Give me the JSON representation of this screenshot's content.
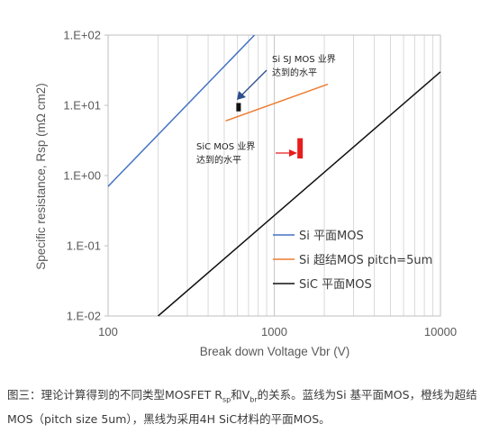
{
  "chart_data": {
    "type": "line",
    "xlabel": "Break down Voltage Vbr (V)",
    "ylabel": "Specific resistance, Rsp (mΩ cm2)",
    "x_scale": "log",
    "y_scale": "log",
    "xlim": [
      100,
      10000
    ],
    "ylim": [
      0.01,
      100
    ],
    "x_ticks": [
      "100",
      "1000",
      "10000"
    ],
    "y_ticks": [
      "1.E-02",
      "1.E-01",
      "1.E+00",
      "1.E+01",
      "1.E+02"
    ],
    "grid": "vertical",
    "legend_position": "right",
    "series": [
      {
        "name": "Si 平面MOS",
        "color": "#4472c4",
        "x": [
          100,
          760
        ],
        "y": [
          0.7,
          100
        ]
      },
      {
        "name": "Si 超结MOS pitch=5um",
        "color": "#ed7d31",
        "x": [
          510,
          2100
        ],
        "y": [
          6,
          20
        ]
      },
      {
        "name": "SiC 平面MOS",
        "color": "#111111",
        "x": [
          200,
          10000
        ],
        "y": [
          0.01,
          30
        ]
      }
    ],
    "markers": [
      {
        "label": "Si SJ MOS",
        "x": 610,
        "y_range": [
          8.2,
          10.8
        ],
        "color": "#111111"
      },
      {
        "label": "SiC MOS",
        "x": 1430,
        "y_range": [
          1.75,
          3.4
        ],
        "color": "#e81c1c"
      }
    ],
    "annotations": [
      {
        "lines": [
          "Si SJ MOS 业界",
          "达到的水平"
        ],
        "arrow_color": "#2f4e8c"
      },
      {
        "lines": [
          "SiC MOS 业界",
          "达到的水平"
        ],
        "arrow_color": "#e81c1c"
      }
    ]
  },
  "caption": {
    "part1": "图三：理论计算得到的不同类型MOSFET R",
    "sub1": "sp",
    "part2": "和V",
    "sub2": "br",
    "part3": "的关系。蓝线为Si 基平面MOS，橙线为超结MOS（pitch size 5um），黑线为采用4H SiC材料的平面MOS。"
  }
}
